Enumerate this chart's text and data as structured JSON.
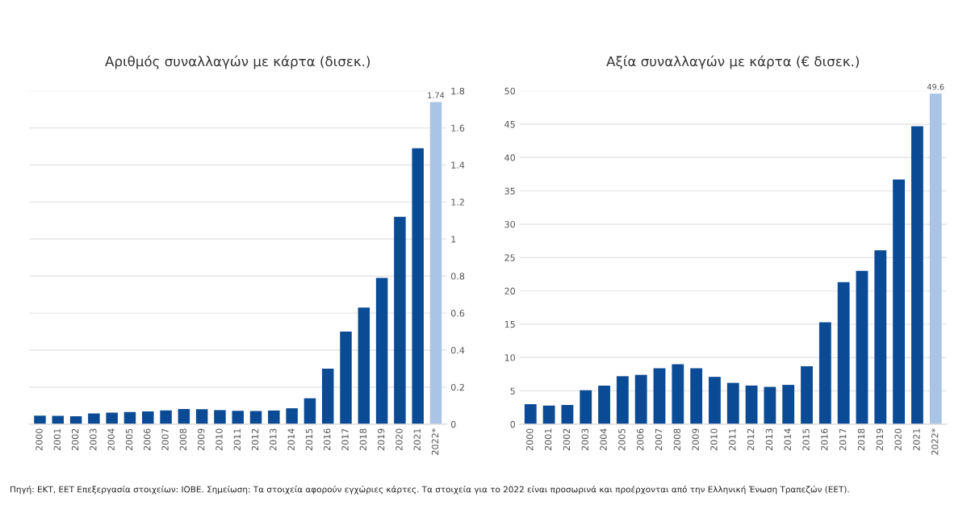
{
  "chart_data": [
    {
      "type": "bar",
      "title": "Αριθμός συναλλαγών με κάρτα (δισεκ.)",
      "categories": [
        "2000",
        "2001",
        "2002",
        "2003",
        "2004",
        "2005",
        "2006",
        "2007",
        "2008",
        "2009",
        "2010",
        "2011",
        "2012",
        "2013",
        "2014",
        "2015",
        "2016",
        "2017",
        "2018",
        "2019",
        "2020",
        "2021",
        "2022*"
      ],
      "values": [
        0.046,
        0.045,
        0.043,
        0.058,
        0.062,
        0.066,
        0.069,
        0.074,
        0.082,
        0.081,
        0.076,
        0.072,
        0.071,
        0.074,
        0.086,
        0.14,
        0.3,
        0.5,
        0.63,
        0.79,
        1.12,
        1.49,
        1.74
      ],
      "colors": [
        "#0b4a94",
        "#0b4a94",
        "#0b4a94",
        "#0b4a94",
        "#0b4a94",
        "#0b4a94",
        "#0b4a94",
        "#0b4a94",
        "#0b4a94",
        "#0b4a94",
        "#0b4a94",
        "#0b4a94",
        "#0b4a94",
        "#0b4a94",
        "#0b4a94",
        "#0b4a94",
        "#0b4a94",
        "#0b4a94",
        "#0b4a94",
        "#0b4a94",
        "#0b4a94",
        "#0b4a94",
        "#a9c4e4"
      ],
      "value_labels": [
        null,
        null,
        null,
        null,
        null,
        null,
        null,
        null,
        null,
        null,
        null,
        null,
        null,
        null,
        null,
        null,
        null,
        null,
        null,
        null,
        null,
        null,
        "1.74"
      ],
      "ylim": [
        0,
        1.8
      ],
      "yticks": [
        0,
        0.2,
        0.4,
        0.6,
        0.8,
        1,
        1.2,
        1.4,
        1.6,
        1.8
      ],
      "grid": "y",
      "annotations": [
        "Πηγή: ΕΚΤ, ΕΕΤ Επεξεργασία στοιχείων: ΙΟΒΕ. Σημείωση: Τα στοιχεία αφορούν εγχώριες κάρτες. Τα στοιχεία για το 2022 είναι προσωρινά και προέρχονται από την Ελληνική Ένωση Τραπεζών (ΕΕΤ)."
      ]
    },
    {
      "type": "bar",
      "title": "Αξία συναλλαγών με κάρτα (€ δισεκ.)",
      "categories": [
        "2000",
        "2001",
        "2002",
        "2003",
        "2004",
        "2005",
        "2006",
        "2007",
        "2008",
        "2009",
        "2010",
        "2011",
        "2012",
        "2013",
        "2014",
        "2015",
        "2016",
        "2017",
        "2018",
        "2019",
        "2020",
        "2021",
        "2022*"
      ],
      "values": [
        3.0,
        2.8,
        2.9,
        5.1,
        5.8,
        7.2,
        7.4,
        8.4,
        9.0,
        8.4,
        7.1,
        6.2,
        5.8,
        5.6,
        5.9,
        8.7,
        15.3,
        21.3,
        23.0,
        26.1,
        36.7,
        44.7,
        49.6
      ],
      "colors": [
        "#0b4a94",
        "#0b4a94",
        "#0b4a94",
        "#0b4a94",
        "#0b4a94",
        "#0b4a94",
        "#0b4a94",
        "#0b4a94",
        "#0b4a94",
        "#0b4a94",
        "#0b4a94",
        "#0b4a94",
        "#0b4a94",
        "#0b4a94",
        "#0b4a94",
        "#0b4a94",
        "#0b4a94",
        "#0b4a94",
        "#0b4a94",
        "#0b4a94",
        "#0b4a94",
        "#0b4a94",
        "#a9c4e4"
      ],
      "value_labels": [
        null,
        null,
        null,
        null,
        null,
        null,
        null,
        null,
        null,
        null,
        null,
        null,
        null,
        null,
        null,
        null,
        null,
        null,
        null,
        null,
        null,
        null,
        "49.6"
      ],
      "ylim": [
        0,
        50
      ],
      "yticks": [
        0,
        5,
        10,
        15,
        20,
        25,
        30,
        35,
        40,
        45,
        50
      ],
      "grid": "y"
    }
  ]
}
